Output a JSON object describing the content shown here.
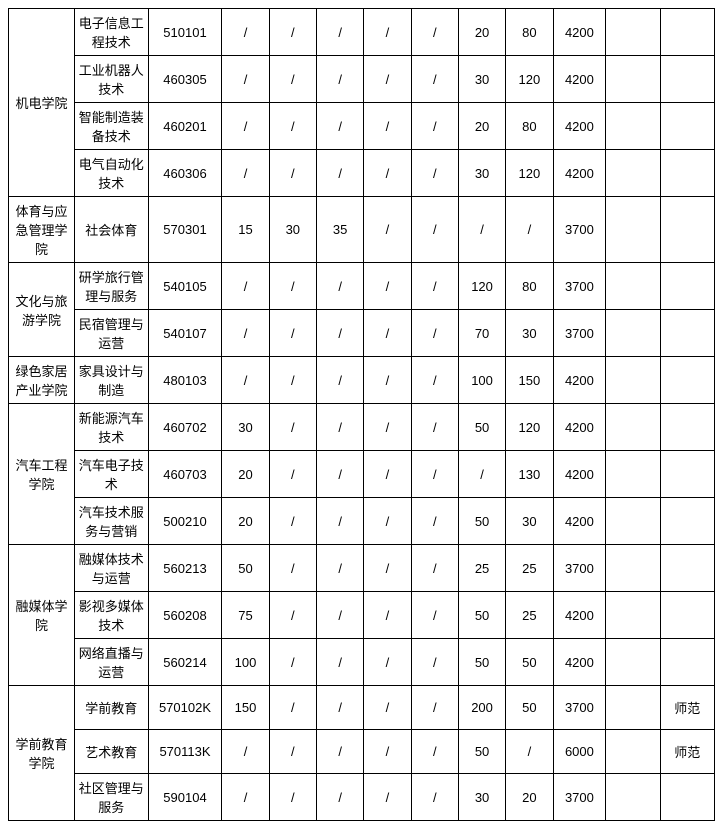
{
  "table": {
    "background_color": "#ffffff",
    "border_color": "#000000",
    "font_size": 13,
    "groups": [
      {
        "dept": "机电学院",
        "rows": [
          {
            "major": "电子信息工程技术",
            "code": "510101",
            "c1": "/",
            "c2": "/",
            "c3": "/",
            "c4": "/",
            "c5": "/",
            "c6": "20",
            "c7": "80",
            "fee": "4200",
            "b1": "",
            "b2": ""
          },
          {
            "major": "工业机器人技术",
            "code": "460305",
            "c1": "/",
            "c2": "/",
            "c3": "/",
            "c4": "/",
            "c5": "/",
            "c6": "30",
            "c7": "120",
            "fee": "4200",
            "b1": "",
            "b2": ""
          },
          {
            "major": "智能制造装备技术",
            "code": "460201",
            "c1": "/",
            "c2": "/",
            "c3": "/",
            "c4": "/",
            "c5": "/",
            "c6": "20",
            "c7": "80",
            "fee": "4200",
            "b1": "",
            "b2": ""
          },
          {
            "major": "电气自动化技术",
            "code": "460306",
            "c1": "/",
            "c2": "/",
            "c3": "/",
            "c4": "/",
            "c5": "/",
            "c6": "30",
            "c7": "120",
            "fee": "4200",
            "b1": "",
            "b2": ""
          }
        ]
      },
      {
        "dept": "体育与应急管理学院",
        "rows": [
          {
            "major": "社会体育",
            "code": "570301",
            "c1": "15",
            "c2": "30",
            "c3": "35",
            "c4": "/",
            "c5": "/",
            "c6": "/",
            "c7": "/",
            "fee": "3700",
            "b1": "",
            "b2": ""
          }
        ]
      },
      {
        "dept": "文化与旅游学院",
        "rows": [
          {
            "major": "研学旅行管理与服务",
            "code": "540105",
            "c1": "/",
            "c2": "/",
            "c3": "/",
            "c4": "/",
            "c5": "/",
            "c6": "120",
            "c7": "80",
            "fee": "3700",
            "b1": "",
            "b2": ""
          },
          {
            "major": "民宿管理与运营",
            "code": "540107",
            "c1": "/",
            "c2": "/",
            "c3": "/",
            "c4": "/",
            "c5": "/",
            "c6": "70",
            "c7": "30",
            "fee": "3700",
            "b1": "",
            "b2": ""
          }
        ]
      },
      {
        "dept": "绿色家居产业学院",
        "rows": [
          {
            "major": "家具设计与制造",
            "code": "480103",
            "c1": "/",
            "c2": "/",
            "c3": "/",
            "c4": "/",
            "c5": "/",
            "c6": "100",
            "c7": "150",
            "fee": "4200",
            "b1": "",
            "b2": ""
          }
        ]
      },
      {
        "dept": "汽车工程学院",
        "rows": [
          {
            "major": "新能源汽车技术",
            "code": "460702",
            "c1": "30",
            "c2": "/",
            "c3": "/",
            "c4": "/",
            "c5": "/",
            "c6": "50",
            "c7": "120",
            "fee": "4200",
            "b1": "",
            "b2": ""
          },
          {
            "major": "汽车电子技术",
            "code": "460703",
            "c1": "20",
            "c2": "/",
            "c3": "/",
            "c4": "/",
            "c5": "/",
            "c6": "/",
            "c7": "130",
            "fee": "4200",
            "b1": "",
            "b2": ""
          },
          {
            "major": "汽车技术服务与营销",
            "code": "500210",
            "c1": "20",
            "c2": "/",
            "c3": "/",
            "c4": "/",
            "c5": "/",
            "c6": "50",
            "c7": "30",
            "fee": "4200",
            "b1": "",
            "b2": ""
          }
        ]
      },
      {
        "dept": "融媒体学院",
        "rows": [
          {
            "major": "融媒体技术与运营",
            "code": "560213",
            "c1": "50",
            "c2": "/",
            "c3": "/",
            "c4": "/",
            "c5": "/",
            "c6": "25",
            "c7": "25",
            "fee": "3700",
            "b1": "",
            "b2": ""
          },
          {
            "major": "影视多媒体技术",
            "code": "560208",
            "c1": "75",
            "c2": "/",
            "c3": "/",
            "c4": "/",
            "c5": "/",
            "c6": "50",
            "c7": "25",
            "fee": "4200",
            "b1": "",
            "b2": ""
          },
          {
            "major": "网络直播与运营",
            "code": "560214",
            "c1": "100",
            "c2": "/",
            "c3": "/",
            "c4": "/",
            "c5": "/",
            "c6": "50",
            "c7": "50",
            "fee": "4200",
            "b1": "",
            "b2": ""
          }
        ]
      },
      {
        "dept": "学前教育学院",
        "rows": [
          {
            "major": "学前教育",
            "code": "570102K",
            "c1": "150",
            "c2": "/",
            "c3": "/",
            "c4": "/",
            "c5": "/",
            "c6": "200",
            "c7": "50",
            "fee": "3700",
            "b1": "",
            "b2": "师范"
          },
          {
            "major": "艺术教育",
            "code": "570113K",
            "c1": "/",
            "c2": "/",
            "c3": "/",
            "c4": "/",
            "c5": "/",
            "c6": "50",
            "c7": "/",
            "fee": "6000",
            "b1": "",
            "b2": "师范"
          },
          {
            "major": "社区管理与服务",
            "code": "590104",
            "c1": "/",
            "c2": "/",
            "c3": "/",
            "c4": "/",
            "c5": "/",
            "c6": "30",
            "c7": "20",
            "fee": "3700",
            "b1": "",
            "b2": ""
          }
        ]
      }
    ]
  }
}
